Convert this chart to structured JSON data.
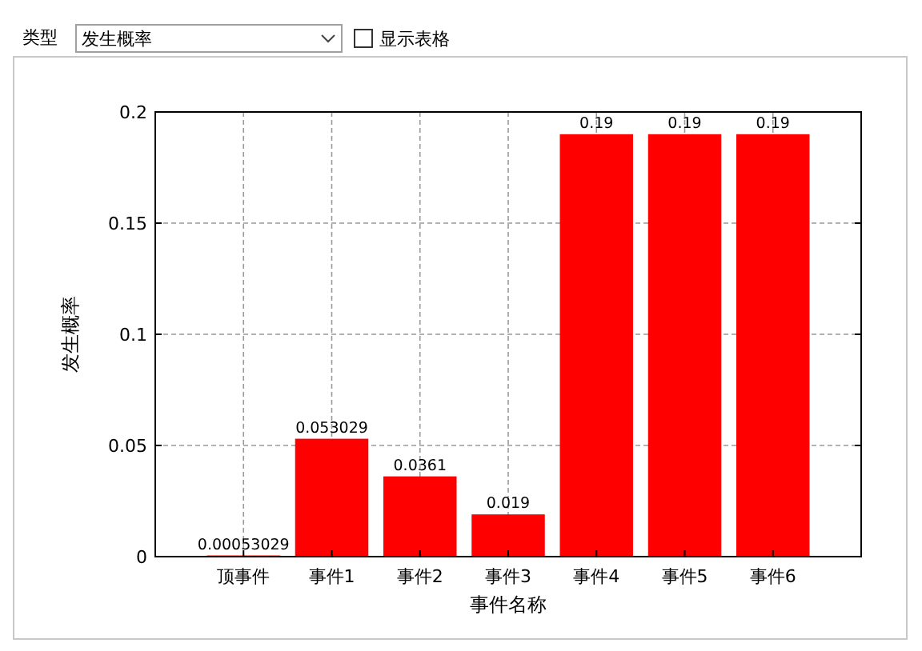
{
  "chart_data": {
    "type": "bar",
    "xlabel": "事件名称",
    "ylabel": "发生概率",
    "annotations": [
      "类型",
      "发生概率",
      "显示表格"
    ],
    "categories": [
      "顶事件",
      "事件1",
      "事件2",
      "事件3",
      "事件4",
      "事件5",
      "事件6"
    ],
    "values": [
      0.00053029,
      0.053029,
      0.0361,
      0.019,
      0.19,
      0.19,
      0.19
    ],
    "color": "#ff0000",
    "ylim": [
      0,
      0.2
    ],
    "yticks": [
      0,
      0.05,
      0.1,
      0.15,
      0.2
    ],
    "grid": true,
    "data_labels": true
  }
}
